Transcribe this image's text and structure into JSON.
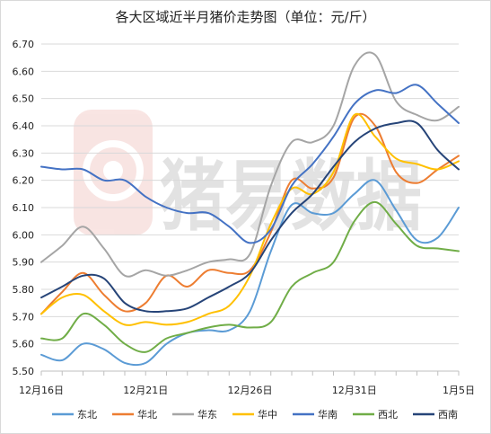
{
  "chart_data": {
    "type": "line",
    "title": "各大区域近半月猪价走势图（单位：元/斤）",
    "ylim": [
      5.5,
      6.7
    ],
    "yticks": [
      "5.50",
      "5.60",
      "5.70",
      "5.80",
      "5.90",
      "6.00",
      "6.10",
      "6.20",
      "6.30",
      "6.40",
      "6.50",
      "6.60",
      "6.70"
    ],
    "xticks": [
      {
        "label": "12月16日",
        "day": 0
      },
      {
        "label": "12月21日",
        "day": 5
      },
      {
        "label": "12月26日",
        "day": 10
      },
      {
        "label": "12月31日",
        "day": 15
      },
      {
        "label": "1月5日",
        "day": 20
      }
    ],
    "x": [
      0,
      1,
      2,
      3,
      4,
      5,
      6,
      7,
      8,
      9,
      10,
      11,
      12,
      13,
      14,
      15,
      16,
      17,
      18,
      19,
      20
    ],
    "grid": "horizontal",
    "legend_position": "bottom",
    "watermark": "猪易数据",
    "series": [
      {
        "name": "东北",
        "color": "#5b9bd5",
        "values": [
          5.56,
          5.54,
          5.6,
          5.58,
          5.53,
          5.53,
          5.6,
          5.64,
          5.65,
          5.65,
          5.72,
          5.94,
          6.11,
          6.08,
          6.08,
          6.15,
          6.2,
          6.09,
          5.98,
          5.99,
          6.1
        ]
      },
      {
        "name": "华北",
        "color": "#ed7d31",
        "values": [
          5.71,
          5.79,
          5.86,
          5.78,
          5.72,
          5.75,
          5.85,
          5.81,
          5.87,
          5.86,
          5.87,
          6.01,
          6.2,
          6.17,
          6.21,
          6.43,
          6.4,
          6.23,
          6.19,
          6.24,
          6.29
        ]
      },
      {
        "name": "华东",
        "color": "#a5a5a5",
        "values": [
          5.9,
          5.96,
          6.03,
          5.95,
          5.85,
          5.87,
          5.85,
          5.87,
          5.9,
          5.91,
          5.93,
          6.18,
          6.34,
          6.34,
          6.4,
          6.62,
          6.66,
          6.49,
          6.44,
          6.42,
          6.47
        ]
      },
      {
        "name": "华中",
        "color": "#ffc000",
        "values": [
          5.71,
          5.77,
          5.78,
          5.72,
          5.67,
          5.68,
          5.67,
          5.68,
          5.71,
          5.74,
          5.85,
          6.04,
          6.17,
          6.15,
          6.23,
          6.44,
          6.36,
          6.28,
          6.26,
          6.24,
          6.27
        ]
      },
      {
        "name": "华南",
        "color": "#4472c4",
        "values": [
          6.25,
          6.24,
          6.24,
          6.2,
          6.2,
          6.14,
          6.1,
          6.08,
          6.08,
          6.03,
          5.97,
          6.02,
          6.18,
          6.26,
          6.36,
          6.48,
          6.53,
          6.52,
          6.55,
          6.48,
          6.41
        ]
      },
      {
        "name": "西北",
        "color": "#70ad47",
        "values": [
          5.62,
          5.62,
          5.71,
          5.67,
          5.6,
          5.57,
          5.62,
          5.64,
          5.66,
          5.67,
          5.66,
          5.68,
          5.81,
          5.86,
          5.9,
          6.05,
          6.12,
          6.04,
          5.96,
          5.95,
          5.94
        ]
      },
      {
        "name": "西南",
        "color": "#264478",
        "values": [
          5.77,
          5.81,
          5.85,
          5.84,
          5.75,
          5.72,
          5.72,
          5.73,
          5.77,
          5.81,
          5.86,
          5.98,
          6.08,
          6.15,
          6.25,
          6.34,
          6.39,
          6.41,
          6.41,
          6.31,
          6.24
        ]
      }
    ]
  }
}
